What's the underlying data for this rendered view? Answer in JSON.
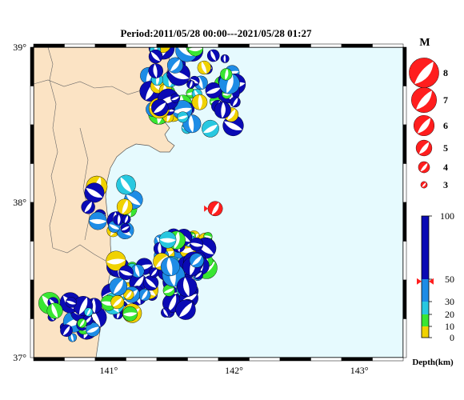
{
  "title": "Period:2011/05/28 00:00---2021/05/28 01:27",
  "map": {
    "lon_range": [
      140.4,
      143.35
    ],
    "lat_range": [
      37.0,
      39.0
    ],
    "lat_ticks": [
      {
        "value": 39,
        "label": "39°"
      },
      {
        "value": 38,
        "label": "38°"
      },
      {
        "value": 37,
        "label": "37°"
      }
    ],
    "lon_ticks": [
      {
        "value": 141,
        "label": "141°"
      },
      {
        "value": 142,
        "label": "142°"
      },
      {
        "value": 143,
        "label": "143°"
      }
    ],
    "colors": {
      "sea": "#e6fafe",
      "land": "#fbe3c4",
      "border": "#000000"
    }
  },
  "magnitude_legend": {
    "title": "M",
    "items": [
      {
        "value": 8,
        "label": "8"
      },
      {
        "value": 7,
        "label": "7"
      },
      {
        "value": 6,
        "label": "6"
      },
      {
        "value": 5,
        "label": "5"
      },
      {
        "value": 4,
        "label": "4"
      },
      {
        "value": 3,
        "label": "3"
      }
    ],
    "color": "#ff1e1e"
  },
  "depth_legend": {
    "title": "Depth(km)",
    "ticks": [
      {
        "value": 100,
        "label": "100"
      },
      {
        "value": 50,
        "label": "50"
      },
      {
        "value": 30,
        "label": "30"
      },
      {
        "value": 20,
        "label": "20"
      },
      {
        "value": 10,
        "label": "10"
      },
      {
        "value": 0,
        "label": "0"
      }
    ],
    "bands": [
      {
        "from": 0,
        "to": 10,
        "color": "#f0d200"
      },
      {
        "from": 10,
        "to": 20,
        "color": "#39e632"
      },
      {
        "from": 20,
        "to": 30,
        "color": "#28c8e0"
      },
      {
        "from": 30,
        "to": 50,
        "color": "#1e8ce6"
      },
      {
        "from": 50,
        "to": 100,
        "color": "#0a0ab4"
      }
    ],
    "marker_value": 48
  },
  "highlight_event": {
    "lon": 141.85,
    "lat": 37.96,
    "color": "#ff1e1e"
  }
}
